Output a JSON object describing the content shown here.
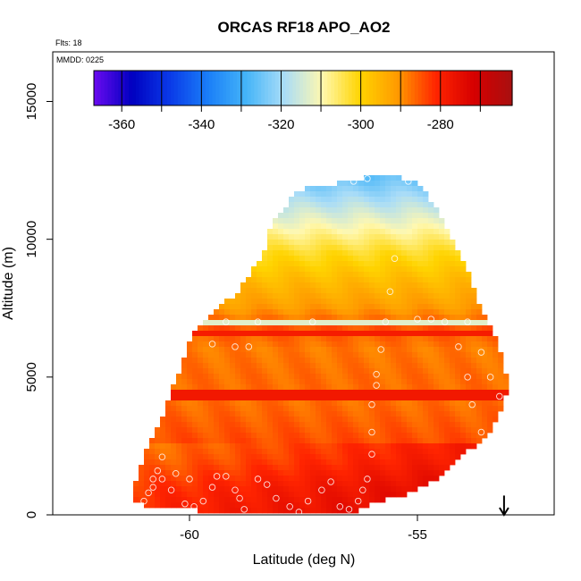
{
  "chart_data": {
    "type": "heatmap",
    "title": "ORCAS RF18 APO_AO2",
    "flights_note": "Flts: 18",
    "date_note": "MMDD: 0225",
    "xlabel": "Latitude (deg N)",
    "ylabel": "Altitude (m)",
    "xlim": [
      -63,
      -52
    ],
    "ylim": [
      0,
      16800
    ],
    "xticks": [
      -60,
      -55
    ],
    "xtick_labels": [
      "-60",
      "-55"
    ],
    "yticks": [
      0,
      5000,
      10000,
      15000
    ],
    "ytick_labels": [
      "0",
      "5000",
      "10000",
      "15000"
    ],
    "colorbar": {
      "range": [
        -367,
        -262
      ],
      "ticks": [
        -360,
        -340,
        -320,
        -300,
        -280
      ],
      "tick_labels": [
        "-360",
        "-340",
        "-320",
        "-300",
        "-280"
      ],
      "edges": [
        -367,
        -360,
        -350,
        -340,
        -330,
        -320,
        -310,
        -300,
        -290,
        -280,
        -270,
        -262
      ],
      "colors": [
        "#6b0af0",
        "#0000c0",
        "#0a3ae8",
        "#1a7ef8",
        "#44b4f8",
        "#a8dcf8",
        "#fff8b0",
        "#ffd400",
        "#ff9900",
        "#ff2400",
        "#d60000",
        "#a81010"
      ]
    },
    "field": {
      "envelope_lat": [
        -61.2,
        -61.0,
        -60.7,
        -60.5,
        -60.3,
        -60.1,
        -59.9,
        -59.6,
        -59.3,
        -59.0,
        -58.7,
        -58.4,
        -58.2,
        -57.6,
        -57.0,
        -56.4,
        -55.9,
        -55.4,
        -55.0,
        -54.6,
        -54.3,
        -54.0,
        -53.8,
        -53.6,
        -53.4,
        -53.2,
        -53.1,
        -53.0,
        -53.1,
        -53.3,
        -53.6,
        -53.9,
        -54.2,
        -54.5,
        -54.9,
        -55.3,
        -55.8,
        -56.2,
        -56.5,
        -57.0,
        -57.5,
        -58.0,
        -58.5,
        -59.0,
        -59.5,
        -60.0,
        -60.5,
        -61.0,
        -61.3
      ],
      "envelope_alt": [
        1000,
        2200,
        3100,
        4000,
        4900,
        5800,
        6700,
        7200,
        7600,
        8000,
        8700,
        9400,
        10600,
        11800,
        12000,
        12100,
        12400,
        12300,
        12000,
        11200,
        10200,
        9200,
        8400,
        7500,
        6800,
        6200,
        5200,
        4800,
        4000,
        3300,
        2700,
        2300,
        1800,
        1400,
        1000,
        700,
        500,
        300,
        0,
        0,
        0,
        0,
        0,
        0,
        50,
        200,
        300,
        350,
        600
      ],
      "profile_alt": [
        0,
        1000,
        2000,
        3000,
        4000,
        5000,
        6000,
        6800,
        7500,
        8500,
        9500,
        10200,
        11000,
        11800,
        12500
      ],
      "profile_value": [
        -277,
        -279,
        -283,
        -285,
        -287,
        -287,
        -288,
        -285,
        -291,
        -296,
        -302,
        -308,
        -315,
        -322,
        -328
      ],
      "bands": [
        {
          "alt": 7000,
          "value": -313
        },
        {
          "alt": 6550,
          "value": -279
        },
        {
          "alt": 4350,
          "value": -278
        }
      ]
    },
    "observations": [
      {
        "lat": -61.1,
        "alt": 300
      },
      {
        "lat": -61.0,
        "alt": 500
      },
      {
        "lat": -60.9,
        "alt": 800
      },
      {
        "lat": -60.8,
        "alt": 1000
      },
      {
        "lat": -60.8,
        "alt": 1300
      },
      {
        "lat": -60.7,
        "alt": 1600
      },
      {
        "lat": -60.6,
        "alt": 2100
      },
      {
        "lat": -60.6,
        "alt": 1300
      },
      {
        "lat": -60.4,
        "alt": 900
      },
      {
        "lat": -60.3,
        "alt": 1500
      },
      {
        "lat": -60.1,
        "alt": 400
      },
      {
        "lat": -60.0,
        "alt": 1300
      },
      {
        "lat": -59.9,
        "alt": 300
      },
      {
        "lat": -59.7,
        "alt": 500
      },
      {
        "lat": -59.5,
        "alt": 1000
      },
      {
        "lat": -59.4,
        "alt": 1400
      },
      {
        "lat": -59.2,
        "alt": 1400
      },
      {
        "lat": -59.0,
        "alt": 900
      },
      {
        "lat": -58.9,
        "alt": 600
      },
      {
        "lat": -58.8,
        "alt": 200
      },
      {
        "lat": -58.5,
        "alt": 1300
      },
      {
        "lat": -58.3,
        "alt": 1100
      },
      {
        "lat": -58.1,
        "alt": 600
      },
      {
        "lat": -57.8,
        "alt": 300
      },
      {
        "lat": -57.6,
        "alt": 100
      },
      {
        "lat": -57.4,
        "alt": 500
      },
      {
        "lat": -57.1,
        "alt": 900
      },
      {
        "lat": -56.9,
        "alt": 1200
      },
      {
        "lat": -56.7,
        "alt": 300
      },
      {
        "lat": -56.5,
        "alt": 200
      },
      {
        "lat": -56.3,
        "alt": 500
      },
      {
        "lat": -56.2,
        "alt": 900
      },
      {
        "lat": -56.1,
        "alt": 1300
      },
      {
        "lat": -56.0,
        "alt": 2200
      },
      {
        "lat": -56.0,
        "alt": 3000
      },
      {
        "lat": -56.0,
        "alt": 4000
      },
      {
        "lat": -55.9,
        "alt": 4700
      },
      {
        "lat": -55.9,
        "alt": 5100
      },
      {
        "lat": -55.8,
        "alt": 6000
      },
      {
        "lat": -55.7,
        "alt": 7000
      },
      {
        "lat": -55.6,
        "alt": 8100
      },
      {
        "lat": -55.5,
        "alt": 9300
      },
      {
        "lat": -55.2,
        "alt": 12100
      },
      {
        "lat": -54.6,
        "alt": 11900
      },
      {
        "lat": -56.1,
        "alt": 12200
      },
      {
        "lat": -56.4,
        "alt": 12100
      },
      {
        "lat": -57.0,
        "alt": 12100
      },
      {
        "lat": -59.9,
        "alt": 7000
      },
      {
        "lat": -59.2,
        "alt": 7000
      },
      {
        "lat": -58.5,
        "alt": 7000
      },
      {
        "lat": -57.3,
        "alt": 7000
      },
      {
        "lat": -55.0,
        "alt": 7100
      },
      {
        "lat": -54.7,
        "alt": 7100
      },
      {
        "lat": -54.4,
        "alt": 7000
      },
      {
        "lat": -53.9,
        "alt": 7000
      },
      {
        "lat": -59.5,
        "alt": 6200
      },
      {
        "lat": -59.0,
        "alt": 6100
      },
      {
        "lat": -58.7,
        "alt": 6100
      },
      {
        "lat": -60.3,
        "alt": 6700
      },
      {
        "lat": -60.4,
        "alt": 6000
      },
      {
        "lat": -60.5,
        "alt": 5400
      },
      {
        "lat": -60.7,
        "alt": 4900
      },
      {
        "lat": -60.9,
        "alt": 4200
      },
      {
        "lat": -61.0,
        "alt": 3700
      },
      {
        "lat": -61.1,
        "alt": 3000
      },
      {
        "lat": -54.1,
        "alt": 6100
      },
      {
        "lat": -53.6,
        "alt": 5900
      },
      {
        "lat": -53.4,
        "alt": 5000
      },
      {
        "lat": -53.2,
        "alt": 4300
      },
      {
        "lat": -53.9,
        "alt": 5000
      },
      {
        "lat": -53.8,
        "alt": 4000
      },
      {
        "lat": -53.6,
        "alt": 3000
      }
    ],
    "arrow": {
      "lat": -53.1,
      "alt_top": 700,
      "alt_bottom": 0,
      "direction": "down"
    }
  }
}
